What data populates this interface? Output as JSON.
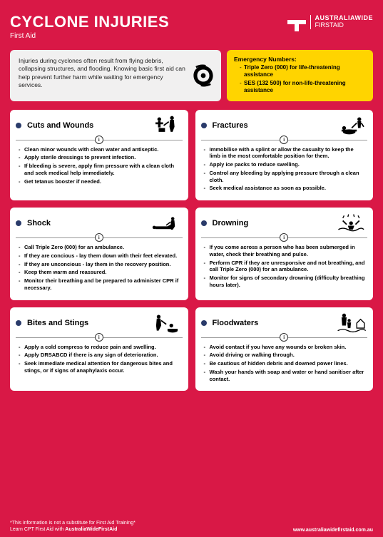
{
  "colors": {
    "background": "#d91846",
    "intro_bg": "#f1f0f0",
    "emergency_bg": "#ffd400",
    "card_bg": "#ffffff",
    "bullet": "#2a3b6a",
    "text_white": "#ffffff",
    "text_black": "#000000"
  },
  "header": {
    "title": "CYCLONE INJURIES",
    "subtitle": "First Aid",
    "logo": {
      "line1": "AUSTRALIAWIDE",
      "line2": "FIRSTAID"
    }
  },
  "intro": {
    "text": "Injuries during cyclones often result from flying debris, collapsing structures, and flooding. Knowing basic first aid can help prevent further harm while waiting for emergency services."
  },
  "emergency": {
    "title": "Emergency Numbers:",
    "items": [
      "Triple Zero (000) for life-threatening assistance",
      "SES (132 500) for non-life-threatening assistance"
    ]
  },
  "cards": [
    {
      "title": "Cuts and Wounds",
      "icon": "wound",
      "items": [
        "Clean minor wounds with clean water and antiseptic.",
        "Apply sterile dressings to prevent infection.",
        "If bleeding is severe, apply firm pressure with a clean cloth and seek medical help immediately.",
        "Get tetanus booster if needed."
      ]
    },
    {
      "title": "Fractures",
      "icon": "fracture",
      "items": [
        "Immobilise with a splint or allow the casualty to keep the limb in the most comfortable position for them.",
        "Apply ice packs to reduce swelling.",
        "Control any bleeding by applying pressure through a clean cloth.",
        "Seek medical assistance as soon as possible."
      ]
    },
    {
      "title": "Shock",
      "icon": "shock",
      "items": [
        "Call Triple Zero (000) for an ambulance.",
        "If they are concious - lay them down with their feet elevated.",
        "If they are unconcious - lay them in the recovery position.",
        "Keep them warm and reassured.",
        "Monitor their breathing and be prepared to administer CPR if necessary."
      ]
    },
    {
      "title": "Drowning",
      "icon": "drowning",
      "items": [
        "If you come across a person who has been submerged in water, check their breathing and pulse.",
        "Perform CPR if they are unresponsive and not breathing, and call Triple Zero (000) for an ambulance.",
        "Monitor for signs of secondary drowning (difficulty breathing hours later)."
      ]
    },
    {
      "title": "Bites and Stings",
      "icon": "bites",
      "items": [
        "Apply a cold compress to reduce pain and swelling.",
        "Apply DRSABCD if there is any sign of deterioration.",
        "Seek immediate medical attention for dangerous bites and stings, or if signs of anaphylaxis occur."
      ]
    },
    {
      "title": "Floodwaters",
      "icon": "flood",
      "items": [
        "Avoid contact if you have any wounds or broken skin.",
        "Avoid driving or walking through.",
        "Be cautious of hidden debris and downed power lines.",
        "Wash your hands with soap and water or hand sanitiser after contact."
      ]
    }
  ],
  "footer": {
    "disclaimer": "*This information is not a substitute for First Aid Training*",
    "learn": "Learn CPT First Aid with ",
    "learn_brand": "AustraliaWideFirstAid",
    "url": "www.australiawidefirstaid.com.au"
  }
}
